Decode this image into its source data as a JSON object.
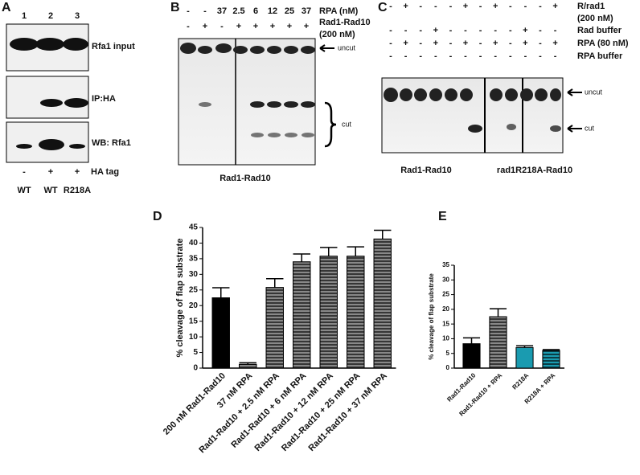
{
  "panels": {
    "A": {
      "label": "A",
      "lanes": [
        "1",
        "2",
        "3"
      ],
      "rows": [
        "Rfa1 input",
        "IP:HA",
        "WB: Rfa1"
      ],
      "ha_tag": [
        "-",
        "+",
        "+"
      ],
      "ha_tag_label": "HA tag",
      "strains": [
        "WT",
        "WT",
        "R218A"
      ]
    },
    "B": {
      "label": "B",
      "rpa_label": "RPA (nM)",
      "rpa": [
        "-",
        "-",
        "37",
        "2.5",
        "6",
        "12",
        "25",
        "37"
      ],
      "enzyme_label": "Rad1-Rad10",
      "enzyme_conc": "(200 nM)",
      "enzyme": [
        "-",
        "+",
        "-",
        "+",
        "+",
        "+",
        "+",
        "+"
      ],
      "uncut": "uncut",
      "cut": "cut",
      "caption": "Rad1-Rad10"
    },
    "C": {
      "label": "C",
      "row_labels": [
        "R/rad1",
        "(200 nM)",
        "Rad buffer",
        "RPA (80 nM)",
        "RPA buffer"
      ],
      "rows": [
        [
          "-",
          "+",
          "-",
          "-",
          "-",
          "+",
          "-",
          "+",
          "-",
          "-",
          "-",
          "+"
        ],
        [
          "-",
          "-",
          "-",
          "+",
          "-",
          "-",
          "-",
          "-",
          "-",
          "+",
          "-",
          "-"
        ],
        [
          "-",
          "+",
          "-",
          "+",
          "-",
          "+",
          "-",
          "+",
          "-",
          "+",
          "-",
          "+"
        ],
        [
          "-",
          "-",
          "-",
          "-",
          "-",
          "-",
          "-",
          "-",
          "-",
          "-",
          "-",
          "-"
        ]
      ],
      "uncut": "uncut",
      "cut": "cut",
      "captions": [
        "Rad1-Rad10",
        "rad1R218A-Rad10"
      ]
    }
  },
  "chart_data": [
    {
      "type": "bar",
      "label": "D",
      "y_label": "% cleavage of flap substrate",
      "categories": [
        "200 nM Rad1-Rad10",
        "37 nM RPA",
        "Rad1-Rad10 + 2.5 nM RPA",
        "Rad1-Rad10 + 6 nM  RPA",
        "Rad1-Rad10 + 12 nM RPA",
        "Rad1-Rad10 + 25 nM RPA",
        "Rad1-Rad10 + 37 nM RPA"
      ],
      "values": [
        22.5,
        1.2,
        25.8,
        34,
        35.8,
        35.8,
        41.3
      ],
      "errors": [
        3.2,
        0.5,
        2.8,
        2.5,
        2.8,
        3,
        2.8
      ],
      "colors": [
        "#000000",
        "#888888",
        "#888888",
        "#888888",
        "#888888",
        "#888888",
        "#888888"
      ],
      "hatched": [
        false,
        true,
        true,
        true,
        true,
        true,
        true
      ],
      "ylim": [
        0,
        45
      ],
      "yticks": [
        0,
        5,
        10,
        15,
        20,
        25,
        30,
        35,
        40,
        45
      ]
    },
    {
      "type": "bar",
      "label": "E",
      "y_label": "% cleavage of flap substrate",
      "categories": [
        "Rad1-Rad10",
        "Rad1-Rad10 + RPA",
        "R218A",
        "R218A + RPA"
      ],
      "values": [
        8.3,
        17.5,
        7,
        6
      ],
      "errors": [
        2,
        2.7,
        0.6,
        0.3
      ],
      "colors": [
        "#000000",
        "#888888",
        "#1a9bb0",
        "#1a9bb0"
      ],
      "hatched": [
        false,
        true,
        false,
        true
      ],
      "ylim": [
        0,
        35
      ],
      "yticks": [
        0,
        5,
        10,
        15,
        20,
        25,
        30,
        35
      ]
    }
  ]
}
